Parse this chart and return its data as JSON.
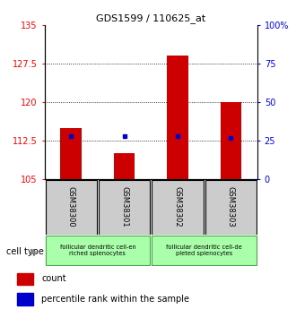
{
  "title": "GDS1599 / 110625_at",
  "samples": [
    "GSM38300",
    "GSM38301",
    "GSM38302",
    "GSM38303"
  ],
  "count_values": [
    115.0,
    110.0,
    129.0,
    120.0
  ],
  "percentile_values": [
    28,
    28,
    28,
    27
  ],
  "ylim_left": [
    105,
    135
  ],
  "ylim_right": [
    0,
    100
  ],
  "yticks_left": [
    105,
    112.5,
    120,
    127.5,
    135
  ],
  "yticks_right": [
    0,
    25,
    50,
    75,
    100
  ],
  "ytick_labels_left": [
    "105",
    "112.5",
    "120",
    "127.5",
    "135"
  ],
  "ytick_labels_right": [
    "0",
    "25",
    "50",
    "75",
    "100%"
  ],
  "bar_color": "#cc0000",
  "dot_color": "#0000cc",
  "cell_type_labels": [
    "follicular dendritic cell-en\nriched splenocytes",
    "follicular dendritic cell-de\npleted splenocytes"
  ],
  "cell_type_bg": "#aaffaa",
  "sample_box_bg": "#cccccc",
  "baseline": 105,
  "bar_width": 0.4
}
